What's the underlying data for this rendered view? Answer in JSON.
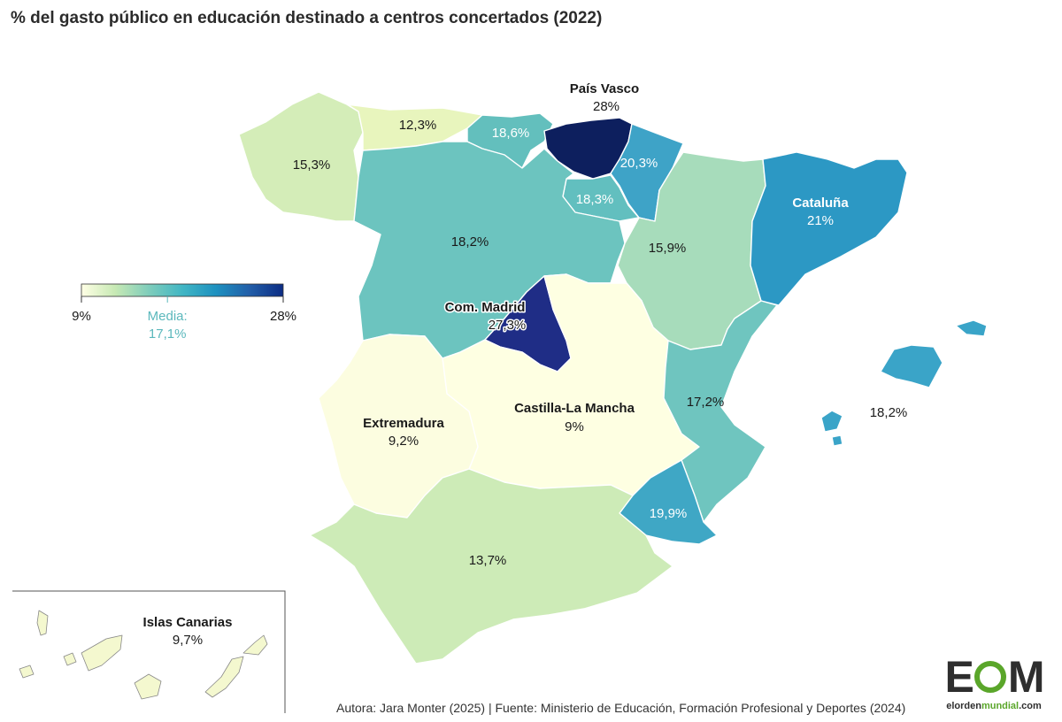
{
  "title": "% del gasto público en educación destinado a centros concertados (2022)",
  "source": "Autora: Jara Monter (2025) | Fuente: Ministerio de Educación, Formación Profesional y Deportes (2024)",
  "logo": {
    "letters_pre": "E",
    "letters_post": "M",
    "url_pre": "elorden",
    "url_mid": "mundial",
    "url_post": ".com",
    "accent": "#5aa62a"
  },
  "legend": {
    "min_label": "9%",
    "max_label": "28%",
    "mean_title": "Media:",
    "mean_value": "17,1%",
    "min": 9,
    "max": 28,
    "mean": 17.1,
    "colors": [
      "#ffffe5",
      "#c7e9b4",
      "#7fcdbb",
      "#41b6c4",
      "#1d91c0",
      "#225ea8",
      "#0c2c84"
    ]
  },
  "regions": [
    {
      "id": "galicia",
      "value": 15.3,
      "value_label": "15,3%",
      "color": "#d4edb8"
    },
    {
      "id": "asturias",
      "value": 12.3,
      "value_label": "12,3%",
      "color": "#e8f5bd"
    },
    {
      "id": "cantabria",
      "value": 18.6,
      "value_label": "18,6%",
      "color": "#63bfbd"
    },
    {
      "id": "pais-vasco",
      "name": "País Vasco",
      "value": 28,
      "value_label": "28%",
      "color": "#0d1f5e"
    },
    {
      "id": "navarra",
      "value": 20.3,
      "value_label": "20,3%",
      "color": "#3ea3c7"
    },
    {
      "id": "la-rioja",
      "value": 18.3,
      "value_label": "18,3%",
      "color": "#62bfbf"
    },
    {
      "id": "castilla-leon",
      "value": 18.2,
      "value_label": "18,2%",
      "color": "#6cc4bf"
    },
    {
      "id": "aragon",
      "value": 15.9,
      "value_label": "15,9%",
      "color": "#a7dcbb"
    },
    {
      "id": "cataluna",
      "name": "Cataluña",
      "value": 21,
      "value_label": "21%",
      "color": "#2c98c4"
    },
    {
      "id": "madrid",
      "name": "Com. Madrid",
      "value": 27.3,
      "value_label": "27,3%",
      "color": "#1f2d86"
    },
    {
      "id": "castilla-la-mancha",
      "name": "Castilla-La Mancha",
      "value": 9,
      "value_label": "9%",
      "color": "#feffe2"
    },
    {
      "id": "extremadura",
      "name": "Extremadura",
      "value": 9.2,
      "value_label": "9,2%",
      "color": "#fcfde0"
    },
    {
      "id": "valencia",
      "value": 17.2,
      "value_label": "17,2%",
      "color": "#6fc5bf"
    },
    {
      "id": "murcia",
      "value": 19.9,
      "value_label": "19,9%",
      "color": "#3fa7c5"
    },
    {
      "id": "andalucia",
      "value": 13.7,
      "value_label": "13,7%",
      "color": "#cdebb7"
    },
    {
      "id": "baleares",
      "value": 18.2,
      "value_label": "18,2%",
      "color": "#3aa4c8"
    },
    {
      "id": "canarias",
      "name": "Islas Canarias",
      "value": 9.7,
      "value_label": "9,7%",
      "color": "#f4f8cf"
    }
  ]
}
